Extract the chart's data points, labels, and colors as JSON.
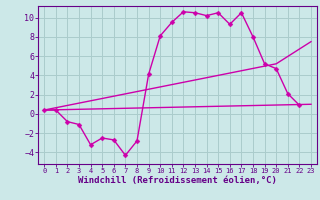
{
  "bg_color": "#cce8e8",
  "grid_color": "#aacccc",
  "line_color": "#cc00aa",
  "marker_color": "#cc00aa",
  "xlabel": "Windchill (Refroidissement éolien,°C)",
  "xlabel_color": "#660088",
  "tick_color": "#660088",
  "spine_color": "#660088",
  "xlim": [
    -0.5,
    23.5
  ],
  "ylim": [
    -5.2,
    11.2
  ],
  "yticks": [
    -4,
    -2,
    0,
    2,
    4,
    6,
    8,
    10
  ],
  "xticks": [
    0,
    1,
    2,
    3,
    4,
    5,
    6,
    7,
    8,
    9,
    10,
    11,
    12,
    13,
    14,
    15,
    16,
    17,
    18,
    19,
    20,
    21,
    22,
    23
  ],
  "line1_x": [
    0,
    1,
    2,
    3,
    4,
    5,
    6,
    7,
    8,
    9,
    10,
    11,
    12,
    13,
    14,
    15,
    16,
    17,
    18,
    19,
    20,
    21,
    22
  ],
  "line1_y": [
    0.4,
    0.4,
    -0.8,
    -1.1,
    -3.2,
    -2.5,
    -2.7,
    -4.3,
    -2.8,
    4.1,
    8.1,
    9.5,
    10.6,
    10.5,
    10.2,
    10.5,
    9.3,
    10.5,
    8.0,
    5.2,
    4.7,
    2.1,
    0.9
  ],
  "line2_x": [
    0,
    20,
    23
  ],
  "line2_y": [
    0.4,
    5.2,
    7.5
  ],
  "line3_x": [
    0,
    23
  ],
  "line3_y": [
    0.4,
    1.0
  ],
  "line_width": 1.0,
  "marker_size": 2.5,
  "font_size": 6,
  "xlabel_fontsize": 6.5,
  "xtick_fontsize": 5.0,
  "ytick_fontsize": 6.0
}
